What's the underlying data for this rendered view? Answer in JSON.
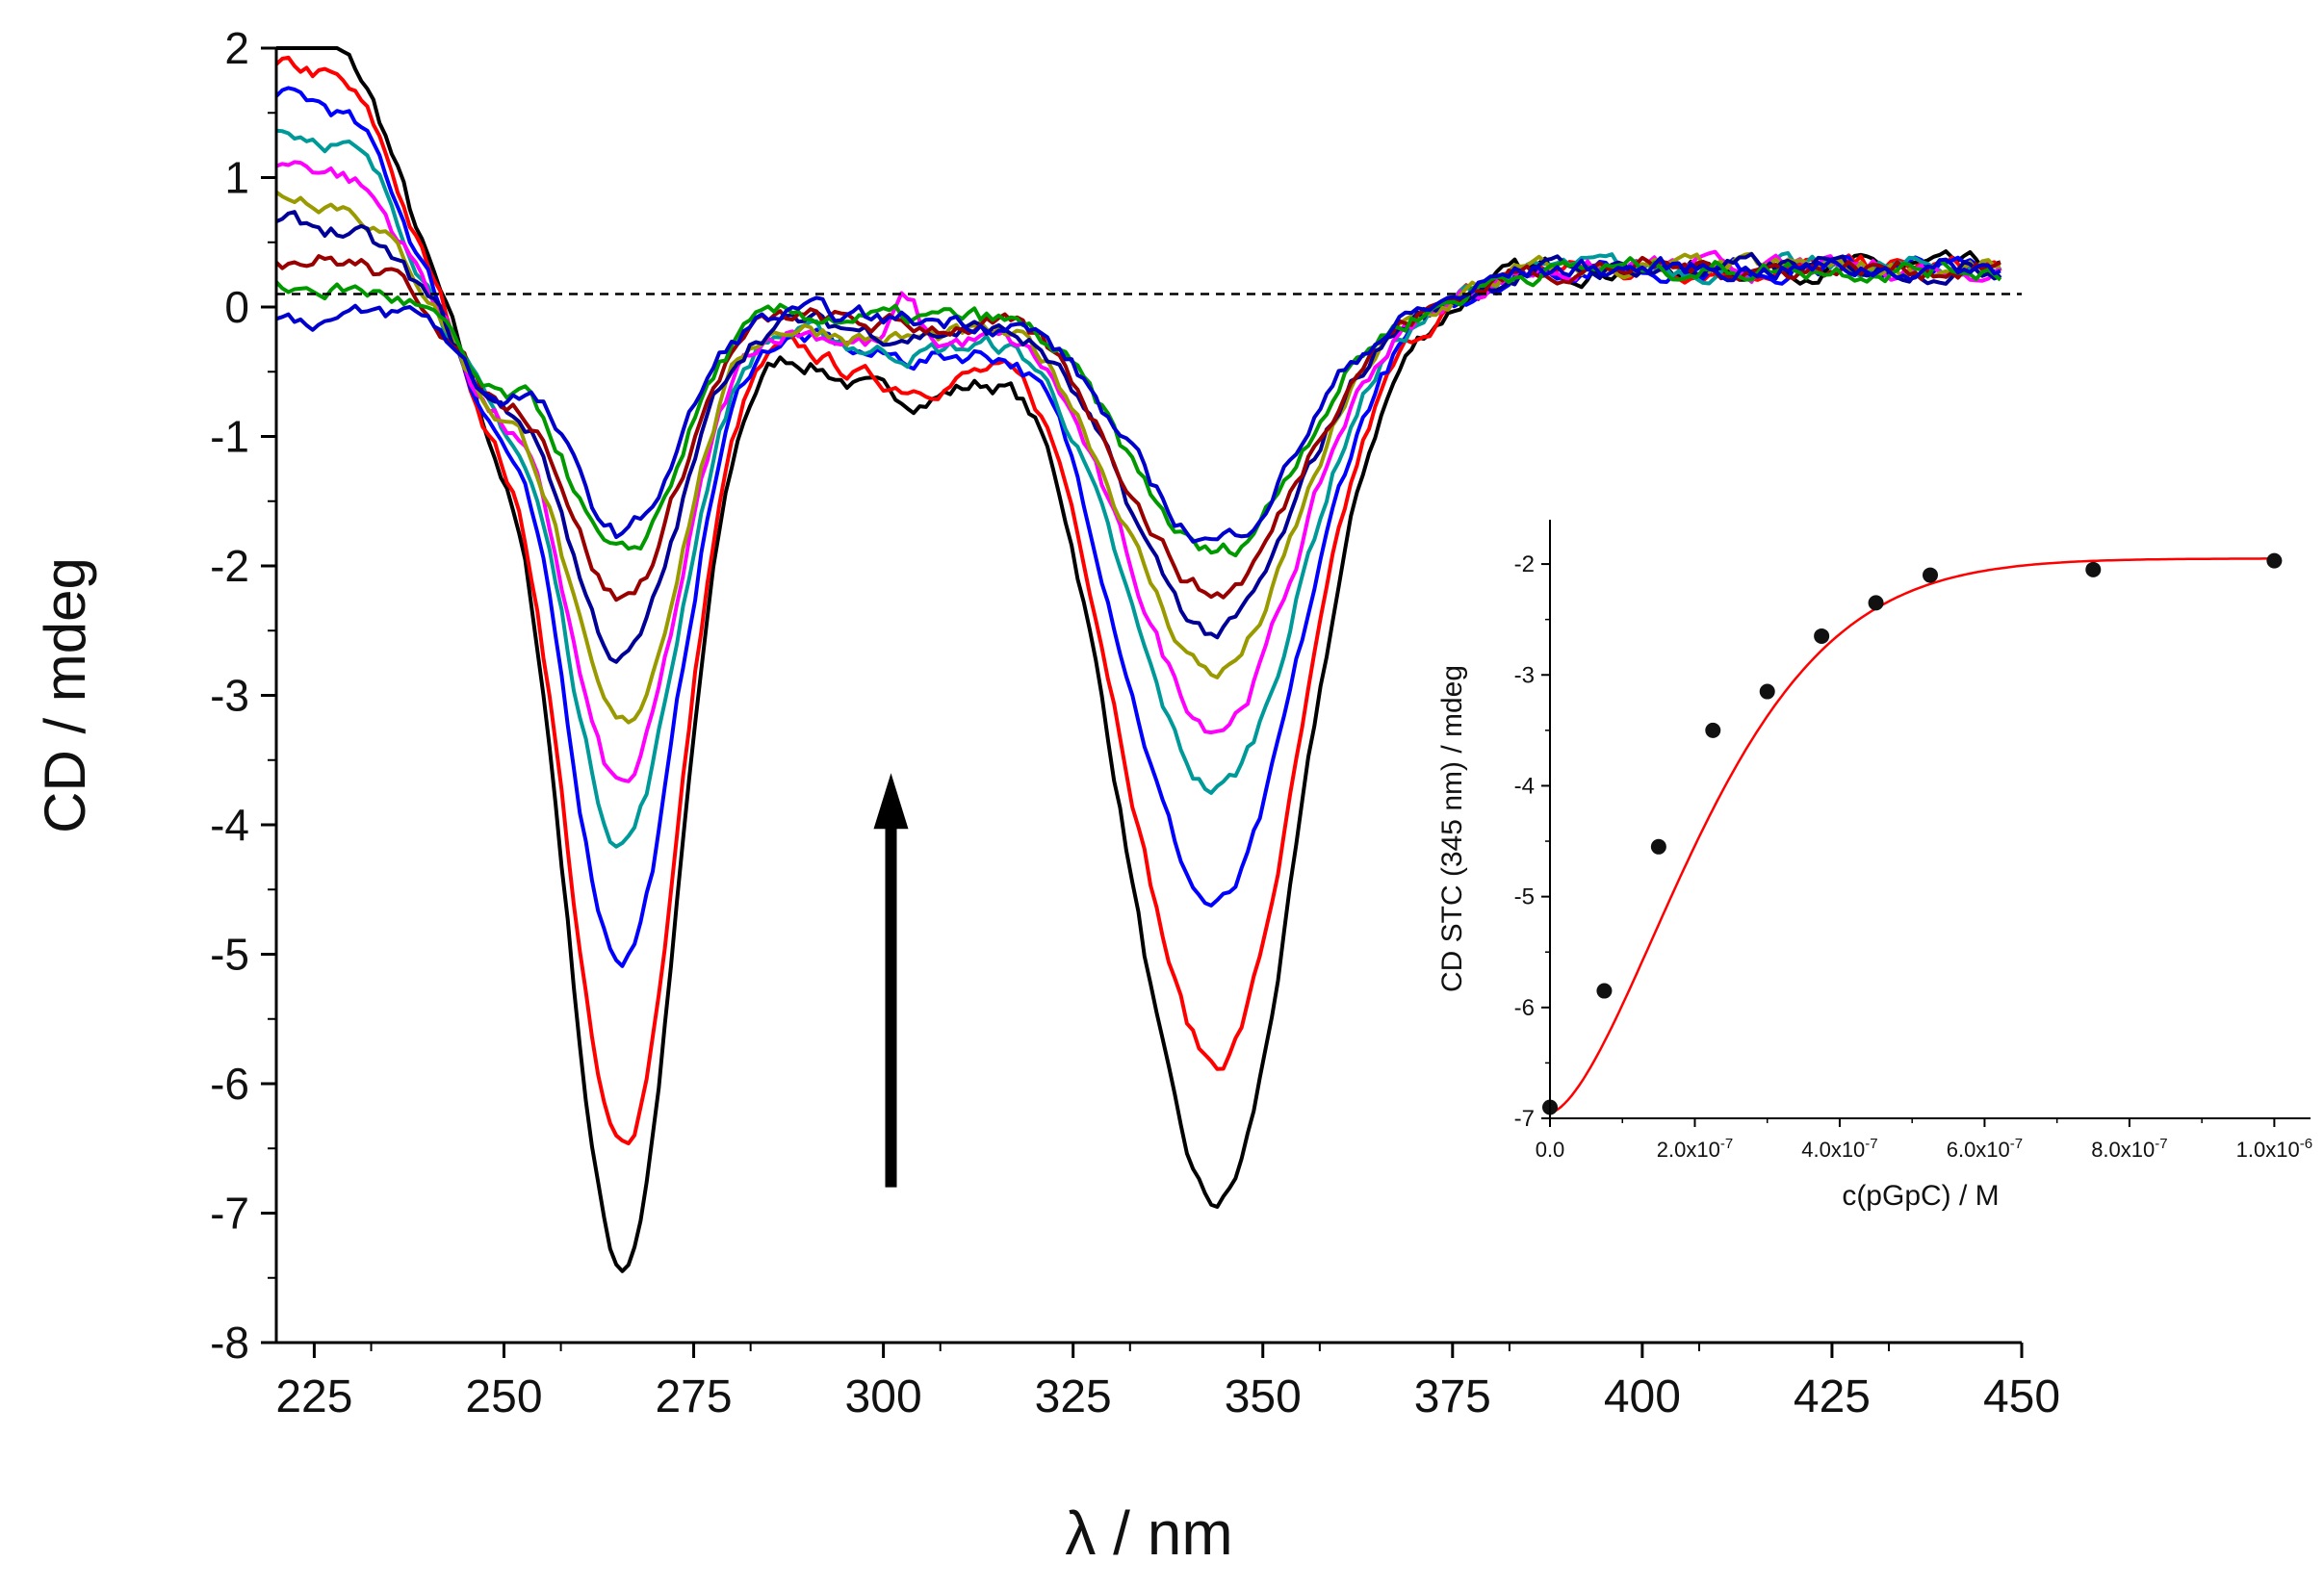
{
  "chart_data": [
    {
      "type": "line",
      "xlabel": "λ / nm",
      "ylabel": "CD / mdeg",
      "xlim": [
        220,
        450
      ],
      "ylim": [
        -8,
        2
      ],
      "xticks": [
        225,
        250,
        275,
        300,
        325,
        350,
        375,
        400,
        425,
        450
      ],
      "yticks": [
        -8,
        -7,
        -6,
        -5,
        -4,
        -3,
        -2,
        -1,
        0,
        1,
        2
      ],
      "grid": false,
      "zero_line": 0.1,
      "arrow": {
        "x": 301,
        "y_from": -6.8,
        "y_to": -3.6
      },
      "series": [
        {
          "color": "#000000",
          "d264": -7.4,
          "d345": -6.9,
          "p305": -0.7
        },
        {
          "color": "#ff0000",
          "d264": -6.5,
          "d345": -5.8,
          "p305": -0.6
        },
        {
          "color": "#0000ff",
          "d264": -5.0,
          "d345": -4.6,
          "p305": -0.4
        },
        {
          "color": "#009999",
          "d264": -4.1,
          "d345": -3.7,
          "p305": -0.35
        },
        {
          "color": "#ff00ff",
          "d264": -3.7,
          "d345": -3.2,
          "p305": -0.3
        },
        {
          "color": "#999900",
          "d264": -3.25,
          "d345": -2.8,
          "p305": -0.25
        },
        {
          "color": "#000099",
          "d264": -2.7,
          "d345": -2.5,
          "p305": -0.2
        },
        {
          "color": "#990000",
          "d264": -2.25,
          "d345": -2.2,
          "p305": -0.15
        },
        {
          "color": "#009900",
          "d264": -1.95,
          "d345": -1.9,
          "p305": -0.1
        },
        {
          "color": "#0000cc",
          "d264": -1.75,
          "d345": -1.8,
          "p305": -0.1
        }
      ]
    },
    {
      "type": "scatter",
      "xlabel": "c(pGpC) / M",
      "ylabel": "CD STC (345 nm) / mdeg",
      "xlim": [
        0,
        1.05e-06
      ],
      "ylim": [
        -7,
        -1.6
      ],
      "xtick_values": [
        0,
        2e-07,
        4e-07,
        6e-07,
        8e-07,
        1e-06
      ],
      "xtick_labels": [
        {
          "mant": "0.0",
          "exp": ""
        },
        {
          "mant": "2.0x10",
          "exp": "-7"
        },
        {
          "mant": "4.0x10",
          "exp": "-7"
        },
        {
          "mant": "6.0x10",
          "exp": "-7"
        },
        {
          "mant": "8.0x10",
          "exp": "-7"
        },
        {
          "mant": "1.0x10",
          "exp": "-6"
        }
      ],
      "yticks": [
        -7,
        -6,
        -5,
        -4,
        -3,
        -2
      ],
      "points": [
        {
          "x": 0,
          "y": -6.9
        },
        {
          "x": 7.5e-08,
          "y": -5.85
        },
        {
          "x": 1.5e-07,
          "y": -4.55
        },
        {
          "x": 2.25e-07,
          "y": -3.5
        },
        {
          "x": 3e-07,
          "y": -3.15
        },
        {
          "x": 3.75e-07,
          "y": -2.65
        },
        {
          "x": 4.5e-07,
          "y": -2.35
        },
        {
          "x": 5.25e-07,
          "y": -2.1
        },
        {
          "x": 7.5e-07,
          "y": -2.05
        },
        {
          "x": 1e-06,
          "y": -1.97
        }
      ],
      "fit_color": "#ff0000"
    }
  ]
}
